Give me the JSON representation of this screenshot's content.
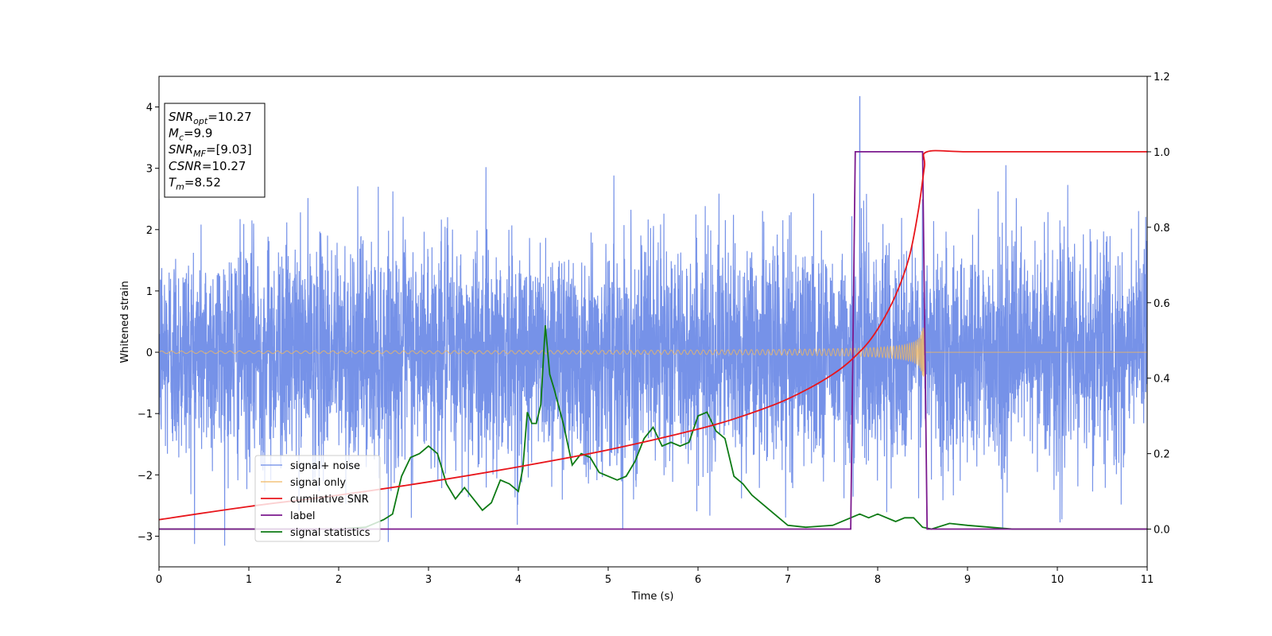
{
  "chart_data": {
    "type": "line",
    "title": "",
    "xlabel": "Time (s)",
    "ylabel": "Whitened strain",
    "xlim": [
      0,
      11
    ],
    "ylim": [
      -3.5,
      4.5
    ],
    "y2lim": [
      -0.1,
      1.2
    ],
    "xticks": [
      "0",
      "1",
      "2",
      "3",
      "4",
      "5",
      "6",
      "7",
      "8",
      "9",
      "10",
      "11"
    ],
    "yticks": [
      "−3",
      "−2",
      "−1",
      "0",
      "1",
      "2",
      "3",
      "4"
    ],
    "y2ticks": [
      "0.0",
      "0.2",
      "0.4",
      "0.6",
      "0.8",
      "1.0",
      "1.2"
    ],
    "grid": false,
    "legend_position": "lower-left",
    "colors": {
      "noise": "#6a89e6",
      "signal": "#f0b860",
      "snr": "#e8151b",
      "label": "#7c1a8e",
      "stats": "#0d7a14"
    },
    "series": [
      {
        "name": "signal+ noise",
        "axis": "left",
        "description_stats": {
          "sigma": 0.9,
          "spike_max": 4.17,
          "spike_x": 7.8,
          "min": -3.15
        }
      },
      {
        "name": "signal only",
        "axis": "left",
        "chirp_start": 0.0,
        "chirp_end": 8.52,
        "amplitude_start": 0.02,
        "amplitude_end": 0.75
      },
      {
        "name": "cumilative SNR",
        "axis": "right",
        "x": [
          0,
          1,
          2,
          3,
          4,
          5,
          6,
          6.5,
          7,
          7.5,
          7.8,
          8.0,
          8.2,
          8.35,
          8.45,
          8.52,
          8.55,
          9,
          10,
          11
        ],
        "y": [
          0.025,
          0.06,
          0.09,
          0.125,
          0.165,
          0.21,
          0.265,
          0.3,
          0.345,
          0.41,
          0.47,
          0.53,
          0.62,
          0.72,
          0.84,
          0.96,
          1.0,
          1.0,
          1.0,
          1.0
        ]
      },
      {
        "name": "label",
        "axis": "right",
        "x": [
          0,
          7.7,
          7.75,
          8.5,
          8.55,
          11
        ],
        "y": [
          0,
          0,
          1,
          1,
          0,
          0
        ]
      },
      {
        "name": "signal statistics",
        "axis": "right",
        "x": [
          0,
          0.5,
          1,
          1.5,
          2,
          2.3,
          2.5,
          2.6,
          2.7,
          2.8,
          2.9,
          3.0,
          3.1,
          3.2,
          3.3,
          3.4,
          3.5,
          3.6,
          3.7,
          3.8,
          3.9,
          4.0,
          4.05,
          4.1,
          4.15,
          4.2,
          4.25,
          4.3,
          4.35,
          4.4,
          4.5,
          4.6,
          4.7,
          4.8,
          4.9,
          5.0,
          5.1,
          5.2,
          5.3,
          5.4,
          5.5,
          5.6,
          5.7,
          5.8,
          5.9,
          6.0,
          6.1,
          6.2,
          6.3,
          6.4,
          6.5,
          6.6,
          6.8,
          7.0,
          7.2,
          7.5,
          7.7,
          7.8,
          7.9,
          8.0,
          8.2,
          8.3,
          8.4,
          8.5,
          8.6,
          8.8,
          9.0,
          9.5,
          10,
          11
        ],
        "y": [
          0.0,
          0.0,
          0.0,
          0.0,
          0.0,
          0.005,
          0.025,
          0.04,
          0.14,
          0.19,
          0.2,
          0.22,
          0.2,
          0.12,
          0.08,
          0.11,
          0.08,
          0.05,
          0.07,
          0.13,
          0.12,
          0.1,
          0.16,
          0.31,
          0.28,
          0.28,
          0.33,
          0.54,
          0.41,
          0.37,
          0.28,
          0.17,
          0.2,
          0.19,
          0.15,
          0.14,
          0.13,
          0.14,
          0.18,
          0.24,
          0.27,
          0.22,
          0.23,
          0.22,
          0.23,
          0.3,
          0.31,
          0.26,
          0.24,
          0.14,
          0.12,
          0.09,
          0.05,
          0.01,
          0.005,
          0.01,
          0.03,
          0.04,
          0.03,
          0.04,
          0.02,
          0.03,
          0.03,
          0.005,
          0.0,
          0.015,
          0.01,
          0.0,
          0.0,
          0.0
        ]
      }
    ],
    "annotation": {
      "lines": [
        {
          "var": "SNR",
          "sub": "opt",
          "value": "=10.27"
        },
        {
          "var": "M",
          "sub": "c",
          "value": "=9.9"
        },
        {
          "var": "SNR",
          "sub": "MF",
          "value": "=[9.03]"
        },
        {
          "var": "CSNR",
          "sub": "",
          "value": "=10.27"
        },
        {
          "var": "T",
          "sub": "m",
          "value": "=8.52"
        }
      ]
    }
  }
}
